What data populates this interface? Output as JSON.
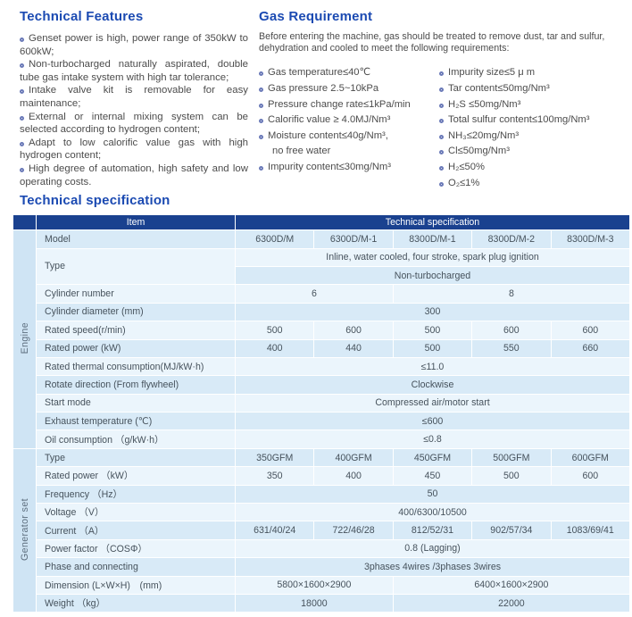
{
  "colors": {
    "heading": "#1b4ab2",
    "table_header_bg": "#1a418f",
    "table_header_text": "#ffffff",
    "row_shade_a": "#d8eaf7",
    "row_shade_b": "#ebf5fc",
    "group_cell_bg": "#cfe4f4",
    "bullet_ring": "#6b7ab8",
    "body_text": "#4c4c4c",
    "table_text": "#46525c"
  },
  "features": {
    "title": "Technical Features",
    "items": [
      {
        "text": "Genset power is high, power range of 350kW to 600kW;"
      },
      {
        "text": "Non-turbocharged naturally aspirated, double tube gas intake system with high tar tolerance;"
      },
      {
        "text": "Intake valve kit is removable for easy maintenance;"
      },
      {
        "text": "External or internal mixing system can be selected according to hydrogen content;"
      },
      {
        "text": "Adapt to low calorific value gas with high hydrogen content;"
      },
      {
        "text": "High degree of automation, high safety and low operating costs."
      }
    ]
  },
  "gas": {
    "title": "Gas Requirement",
    "intro": "Before entering the machine, gas should be treated to remove dust, tar and sulfur, dehydration and cooled to meet the following requirements:",
    "left_items": [
      {
        "text": "Gas temperature≤40℃"
      },
      {
        "text": "Gas pressure 2.5~10kPa"
      },
      {
        "text": "Pressure change rate≤1kPa/min"
      },
      {
        "text": "Calorific value ≥ 4.0MJ/Nm³"
      },
      {
        "text": "Moisture content≤40g/Nm³,",
        "note": "no free water"
      },
      {
        "text": "Impurity content≤30mg/Nm³"
      }
    ],
    "right_items": [
      {
        "text": "Impurity size≤5 μ m"
      },
      {
        "text": "Tar content≤50mg/Nm³"
      },
      {
        "text": "H₂S ≤50mg/Nm³"
      },
      {
        "text": "Total sulfur content≤100mg/Nm³"
      },
      {
        "text": "NH₃≤20mg/Nm³"
      },
      {
        "text": "Cl≤50mg/Nm³"
      },
      {
        "text": "H₂≤50%"
      },
      {
        "text": "O₂≤1%"
      }
    ]
  },
  "table": {
    "title": "Technical specification",
    "header": {
      "item": "Item",
      "spec": "Technical specification"
    },
    "groups": [
      {
        "label": "Engine",
        "rows": [
          {
            "label": "Model",
            "lines": [
              [
                [
                  "6300D/M",
                  1
                ],
                [
                  "6300D/M-1",
                  1
                ],
                [
                  "8300D/M-1",
                  1
                ],
                [
                  "8300D/M-2",
                  1
                ],
                [
                  "8300D/M-3",
                  1
                ]
              ]
            ]
          },
          {
            "label": "Type",
            "lines": [
              [
                [
                  "Inline, water cooled, four stroke, spark plug ignition",
                  5
                ]
              ],
              [
                [
                  "Non-turbocharged",
                  5
                ]
              ]
            ]
          },
          {
            "label": "Cylinder number",
            "lines": [
              [
                [
                  "6",
                  2
                ],
                [
                  "8",
                  3
                ]
              ]
            ]
          },
          {
            "label": "Cylinder diameter (mm)",
            "lines": [
              [
                [
                  "300",
                  5
                ]
              ]
            ]
          },
          {
            "label": "Rated speed(r/min)",
            "lines": [
              [
                [
                  "500",
                  1
                ],
                [
                  "600",
                  1
                ],
                [
                  "500",
                  1
                ],
                [
                  "600",
                  1
                ],
                [
                  "600",
                  1
                ]
              ]
            ]
          },
          {
            "label": "Rated power (kW)",
            "lines": [
              [
                [
                  "400",
                  1
                ],
                [
                  "440",
                  1
                ],
                [
                  "500",
                  1
                ],
                [
                  "550",
                  1
                ],
                [
                  "660",
                  1
                ]
              ]
            ]
          },
          {
            "label": "Rated thermal consumption(MJ/kW·h)",
            "lines": [
              [
                [
                  "≤11.0",
                  5
                ]
              ]
            ]
          },
          {
            "label": "Rotate direction (From flywheel)",
            "lines": [
              [
                [
                  "Clockwise",
                  5
                ]
              ]
            ]
          },
          {
            "label": "Start mode",
            "lines": [
              [
                [
                  "Compressed air/motor start",
                  5
                ]
              ]
            ]
          },
          {
            "label": "Exhaust temperature (℃)",
            "lines": [
              [
                [
                  "≤600",
                  5
                ]
              ]
            ]
          },
          {
            "label": "Oil consumption （g/kW·h）",
            "lines": [
              [
                [
                  "≤0.8",
                  5
                ]
              ]
            ]
          }
        ]
      },
      {
        "label": "Generator set",
        "rows": [
          {
            "label": "Type",
            "lines": [
              [
                [
                  "350GFM",
                  1
                ],
                [
                  "400GFM",
                  1
                ],
                [
                  "450GFM",
                  1
                ],
                [
                  "500GFM",
                  1
                ],
                [
                  "600GFM",
                  1
                ]
              ]
            ]
          },
          {
            "label": "Rated power （kW）",
            "lines": [
              [
                [
                  "350",
                  1
                ],
                [
                  "400",
                  1
                ],
                [
                  "450",
                  1
                ],
                [
                  "500",
                  1
                ],
                [
                  "600",
                  1
                ]
              ]
            ]
          },
          {
            "label": "Frequency （Hz）",
            "lines": [
              [
                [
                  "50",
                  5
                ]
              ]
            ]
          },
          {
            "label": "Voltage （V）",
            "lines": [
              [
                [
                  "400/6300/10500",
                  5
                ]
              ]
            ]
          },
          {
            "label": "Current （A）",
            "lines": [
              [
                [
                  "631/40/24",
                  1
                ],
                [
                  "722/46/28",
                  1
                ],
                [
                  "812/52/31",
                  1
                ],
                [
                  "902/57/34",
                  1
                ],
                [
                  "1083/69/41",
                  1
                ]
              ]
            ]
          },
          {
            "label": "Power factor （COSΦ）",
            "lines": [
              [
                [
                  "0.8 (Lagging)",
                  5
                ]
              ]
            ]
          },
          {
            "label": "Phase and connecting",
            "lines": [
              [
                [
                  "3phases 4wires /3phases 3wires",
                  5
                ]
              ]
            ]
          },
          {
            "label": "Dimension (L×W×H)　(mm)",
            "lines": [
              [
                [
                  "5800×1600×2900",
                  2
                ],
                [
                  "6400×1600×2900",
                  3
                ]
              ]
            ]
          },
          {
            "label": "Weight （kg）",
            "lines": [
              [
                [
                  "18000",
                  2
                ],
                [
                  "22000",
                  3
                ]
              ]
            ]
          }
        ]
      }
    ]
  }
}
